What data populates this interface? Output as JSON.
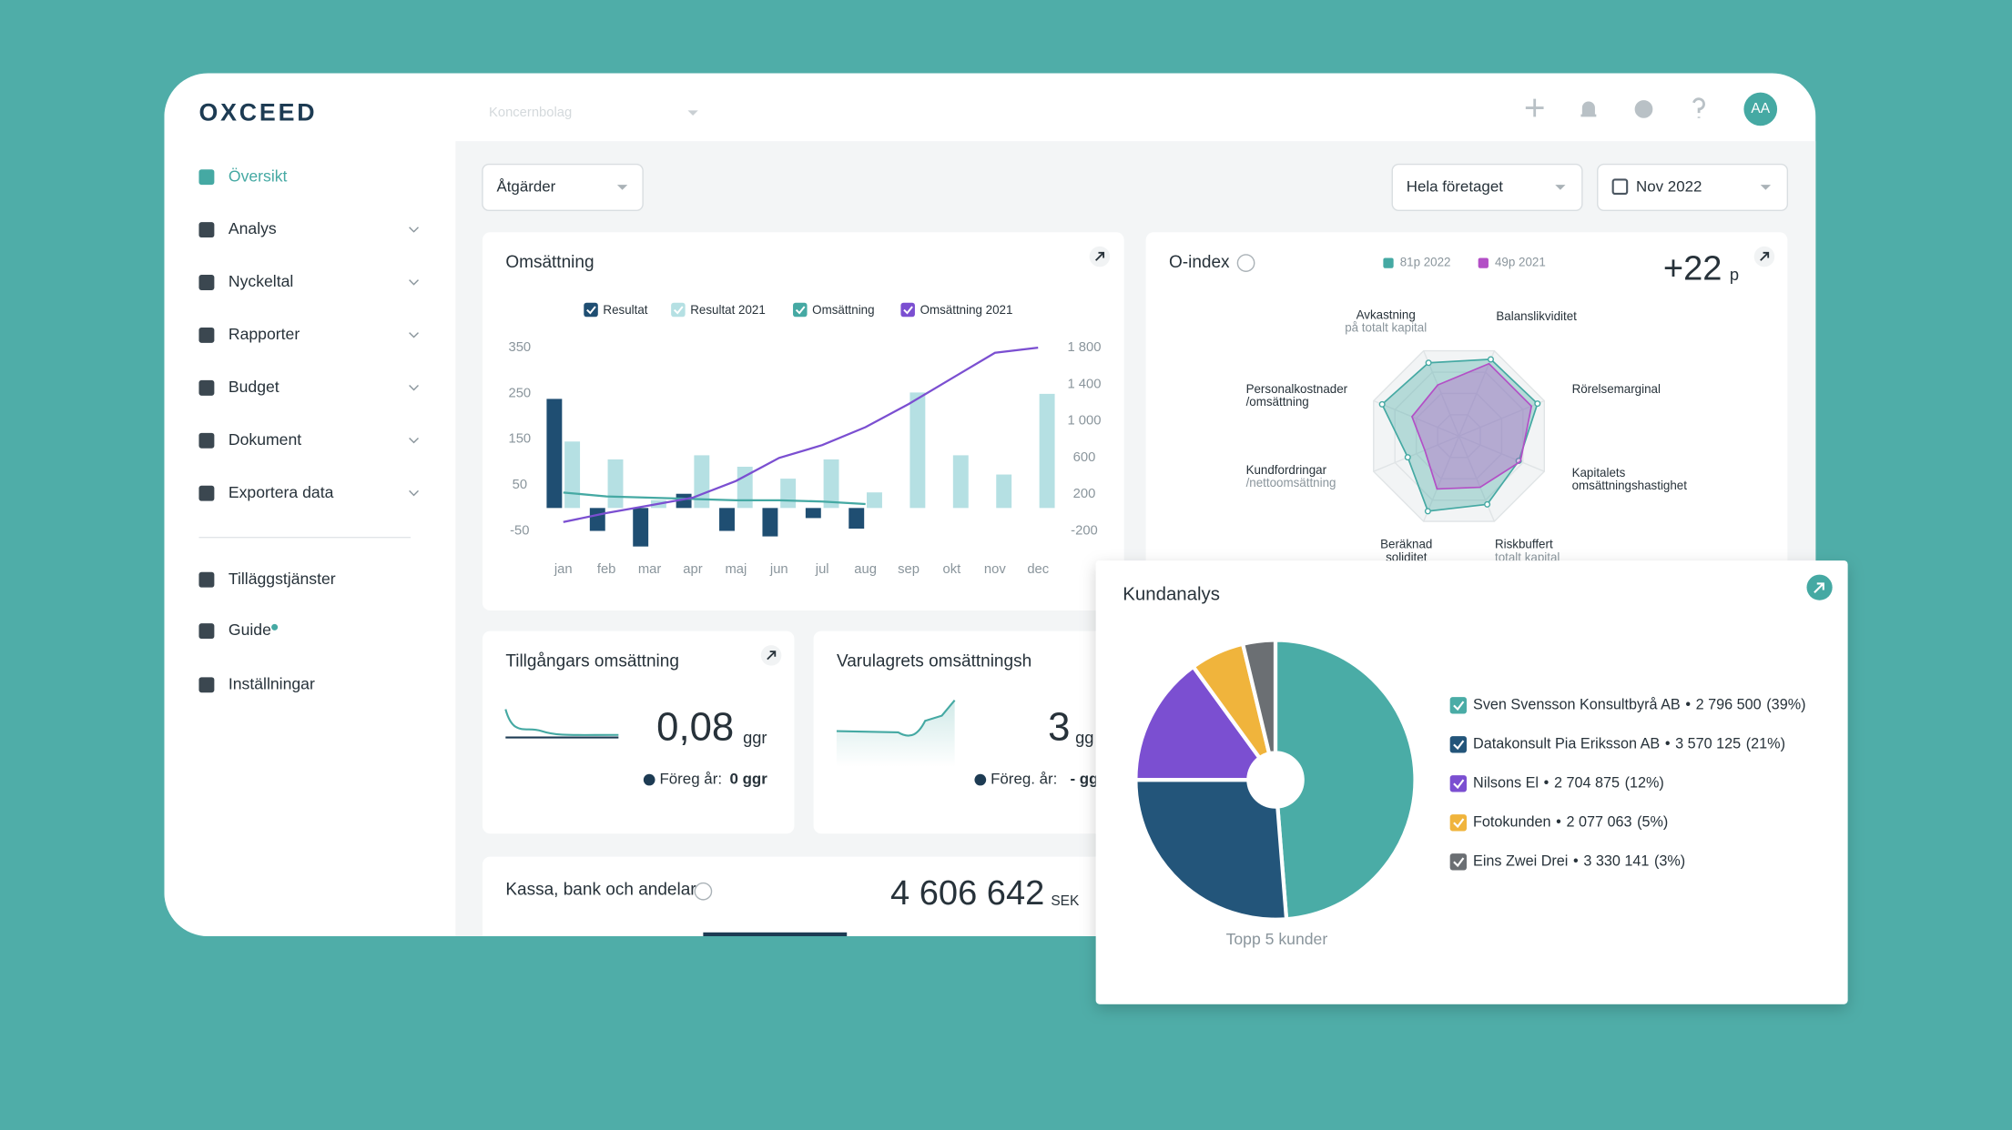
{
  "brand": "OXCEED",
  "header": {
    "company_select": "Koncernbolag",
    "avatar": "AA"
  },
  "sidebar": {
    "items": [
      "Översikt",
      "Analys",
      "Nyckeltal",
      "Rapporter",
      "Budget",
      "Dokument",
      "Exportera data"
    ],
    "extras": [
      "Tilläggstjänster",
      "Guide",
      "Inställningar"
    ]
  },
  "toolbar": {
    "actions": "Åtgärder",
    "scope": "Hela företaget",
    "period": "Nov 2022"
  },
  "kpis": [
    {
      "title": "Tillgångars omsättning",
      "value": "0,08",
      "unit": "ggr",
      "previous_label": "Föreg år:",
      "previous": "0 ggr"
    },
    {
      "title": "Varulagrets omsättningsh",
      "value": "3",
      "unit": "gg",
      "previous_label": "Föreg. år:",
      "previous": "- gg"
    },
    {
      "title": "Kassa, bank och andelar",
      "value": "4 606 642",
      "unit": "SEK"
    }
  ],
  "chart_data": [
    {
      "type": "bar",
      "title": "Omsättning",
      "categories": [
        "jan",
        "feb",
        "mar",
        "apr",
        "maj",
        "jun",
        "jul",
        "aug",
        "sep",
        "okt",
        "nov",
        "dec"
      ],
      "series": [
        {
          "name": "Resultat",
          "color": "#1f4e72",
          "values": [
            238,
            -50,
            -84,
            31,
            -50,
            -62,
            -22,
            -45,
            null,
            null,
            null,
            null
          ]
        },
        {
          "name": "Resultat 2021",
          "color": "#b5e0e3",
          "values": [
            145,
            106,
            17,
            115,
            90,
            64,
            106,
            34,
            252,
            115,
            73,
            249
          ]
        },
        {
          "name": "Omsättning",
          "type": "line",
          "axis": "y2",
          "color": "#45a9a3",
          "values": [
            220,
            178,
            164,
            150,
            136,
            136,
            122,
            94,
            null,
            null,
            null,
            null
          ]
        },
        {
          "name": "Omsättning 2021",
          "type": "line",
          "axis": "y2",
          "color": "#7b4fd1",
          "values": [
            -102,
            -4,
            80,
            164,
            345,
            597,
            737,
            933,
            1185,
            1464,
            1744,
            1800
          ]
        }
      ],
      "ylim": [
        -95,
        375
      ],
      "yticks": [
        350,
        250,
        150,
        50,
        -50
      ],
      "y2lim": [
        -424,
        1926
      ],
      "y2ticks": [
        {
          "value": 1800,
          "label": "1 800"
        },
        {
          "value": 1400,
          "label": "1 400"
        },
        {
          "value": 1000,
          "label": "1 000"
        },
        600,
        200,
        -200
      ],
      "grid": false
    },
    {
      "type": "radar",
      "title": "O-index",
      "score": "+22",
      "score_unit": "p",
      "rlim": [
        0,
        100
      ],
      "axes": [
        {
          "lines": [
            "Avkastning"
          ],
          "sublabel": "på totalt kapital"
        },
        {
          "lines": [
            "Balanslikviditet"
          ]
        },
        {
          "lines": [
            "Rörelsemarginal"
          ]
        },
        {
          "lines": [
            "Kapitalets",
            "omsättningshastighet"
          ]
        },
        {
          "lines": [
            "Riskbuffert"
          ],
          "sublabel": "totalt kapital"
        },
        {
          "lines": [
            "Beräknad",
            "soliditet"
          ]
        },
        {
          "lines": [
            "Kundfordringar"
          ],
          "sublabel": "/nettoomsättning"
        },
        {
          "lines": [
            "Personalkostnader",
            "/omsättning"
          ]
        }
      ],
      "series": [
        {
          "name": "81p 2022",
          "color": "#45a9a3",
          "values": [
            86,
            90,
            92,
            70,
            80,
            88,
            60,
            90
          ]
        },
        {
          "name": "49p 2021",
          "color": "#b34fc6",
          "values": [
            60,
            85,
            85,
            72,
            60,
            62,
            40,
            55
          ]
        }
      ]
    },
    {
      "type": "pie",
      "title": "Kundanalys",
      "caption": "Topp 5 kunder",
      "categories": [
        "Sven Svensson Konsultbyrå AB",
        "Datakonsult Pia Eriksson AB",
        "Nilsons El",
        "Fotokunden",
        "Eins Zwei Drei"
      ],
      "separator": "•",
      "amounts": [
        "2 796 500",
        "3 570 125",
        "2 704 875",
        "2 077 063",
        "3 330 141"
      ],
      "values": [
        39,
        21,
        12,
        5,
        3
      ],
      "value_labels": [
        "(39%)",
        "(21%)",
        "(12%)",
        "(5%)",
        "(3%)"
      ],
      "colors": [
        "#4aaca6",
        "#23557a",
        "#7b4fd1",
        "#f0b43c",
        "#6b6f73"
      ]
    }
  ]
}
